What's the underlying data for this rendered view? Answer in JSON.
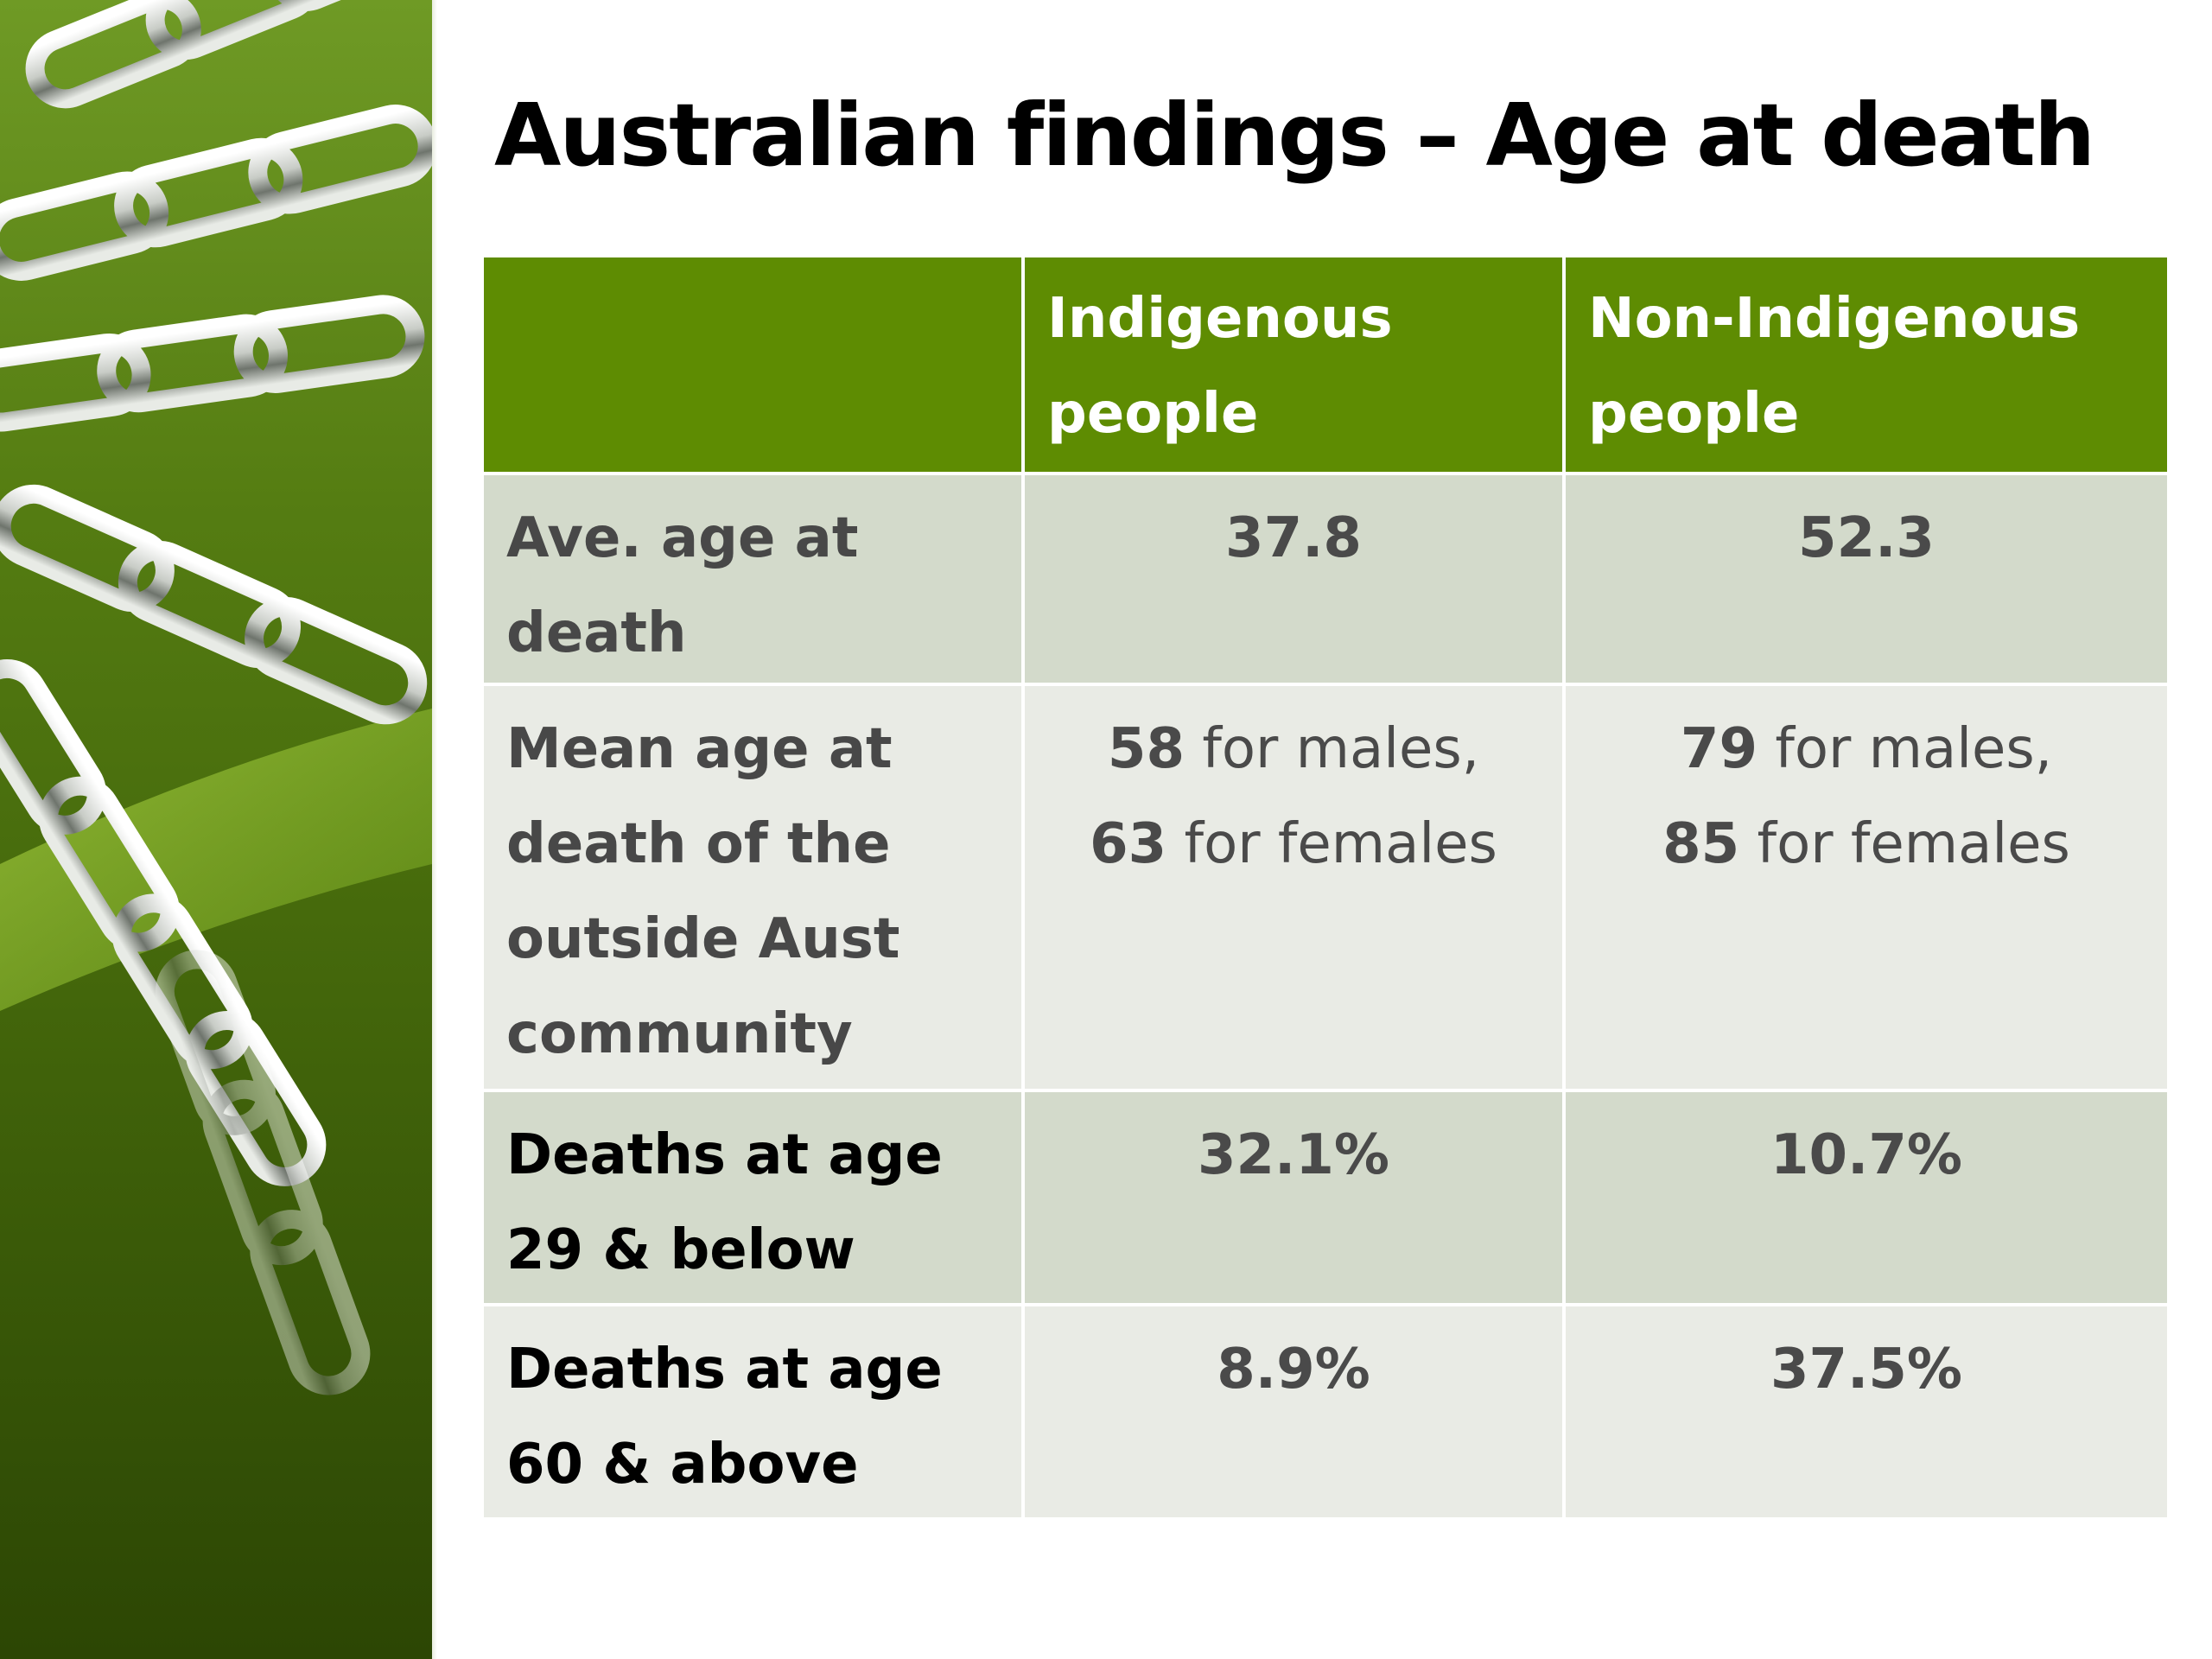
{
  "title": "Australian findings – Age at death",
  "table": {
    "headers": [
      "",
      "Indigenous people",
      "Non-Indigenous people"
    ],
    "rows": [
      {
        "label": "Ave. age at death",
        "indigenous": "37.8",
        "non_indigenous": "52.3"
      },
      {
        "label": "Mean age at death of the outside Aust community",
        "indigenous": {
          "males_num": "58",
          "males_txt": " for males,",
          "females_num": "63",
          "females_txt": " for females"
        },
        "non_indigenous": {
          "males_num": "79",
          "males_txt": " for males,",
          "females_num": "85",
          "females_txt": " for females"
        }
      },
      {
        "label": "Deaths at age 29 & below",
        "indigenous": "32.1%",
        "non_indigenous": "10.7%"
      },
      {
        "label": "Deaths at age 60 & above",
        "indigenous": "8.9%",
        "non_indigenous": "37.5%"
      }
    ]
  },
  "colors": {
    "header_green": "#5e8c02",
    "row_dark": "#d3dacb",
    "row_light": "#e9ebe5"
  },
  "decoration": {
    "icon": "chain-links-image"
  }
}
